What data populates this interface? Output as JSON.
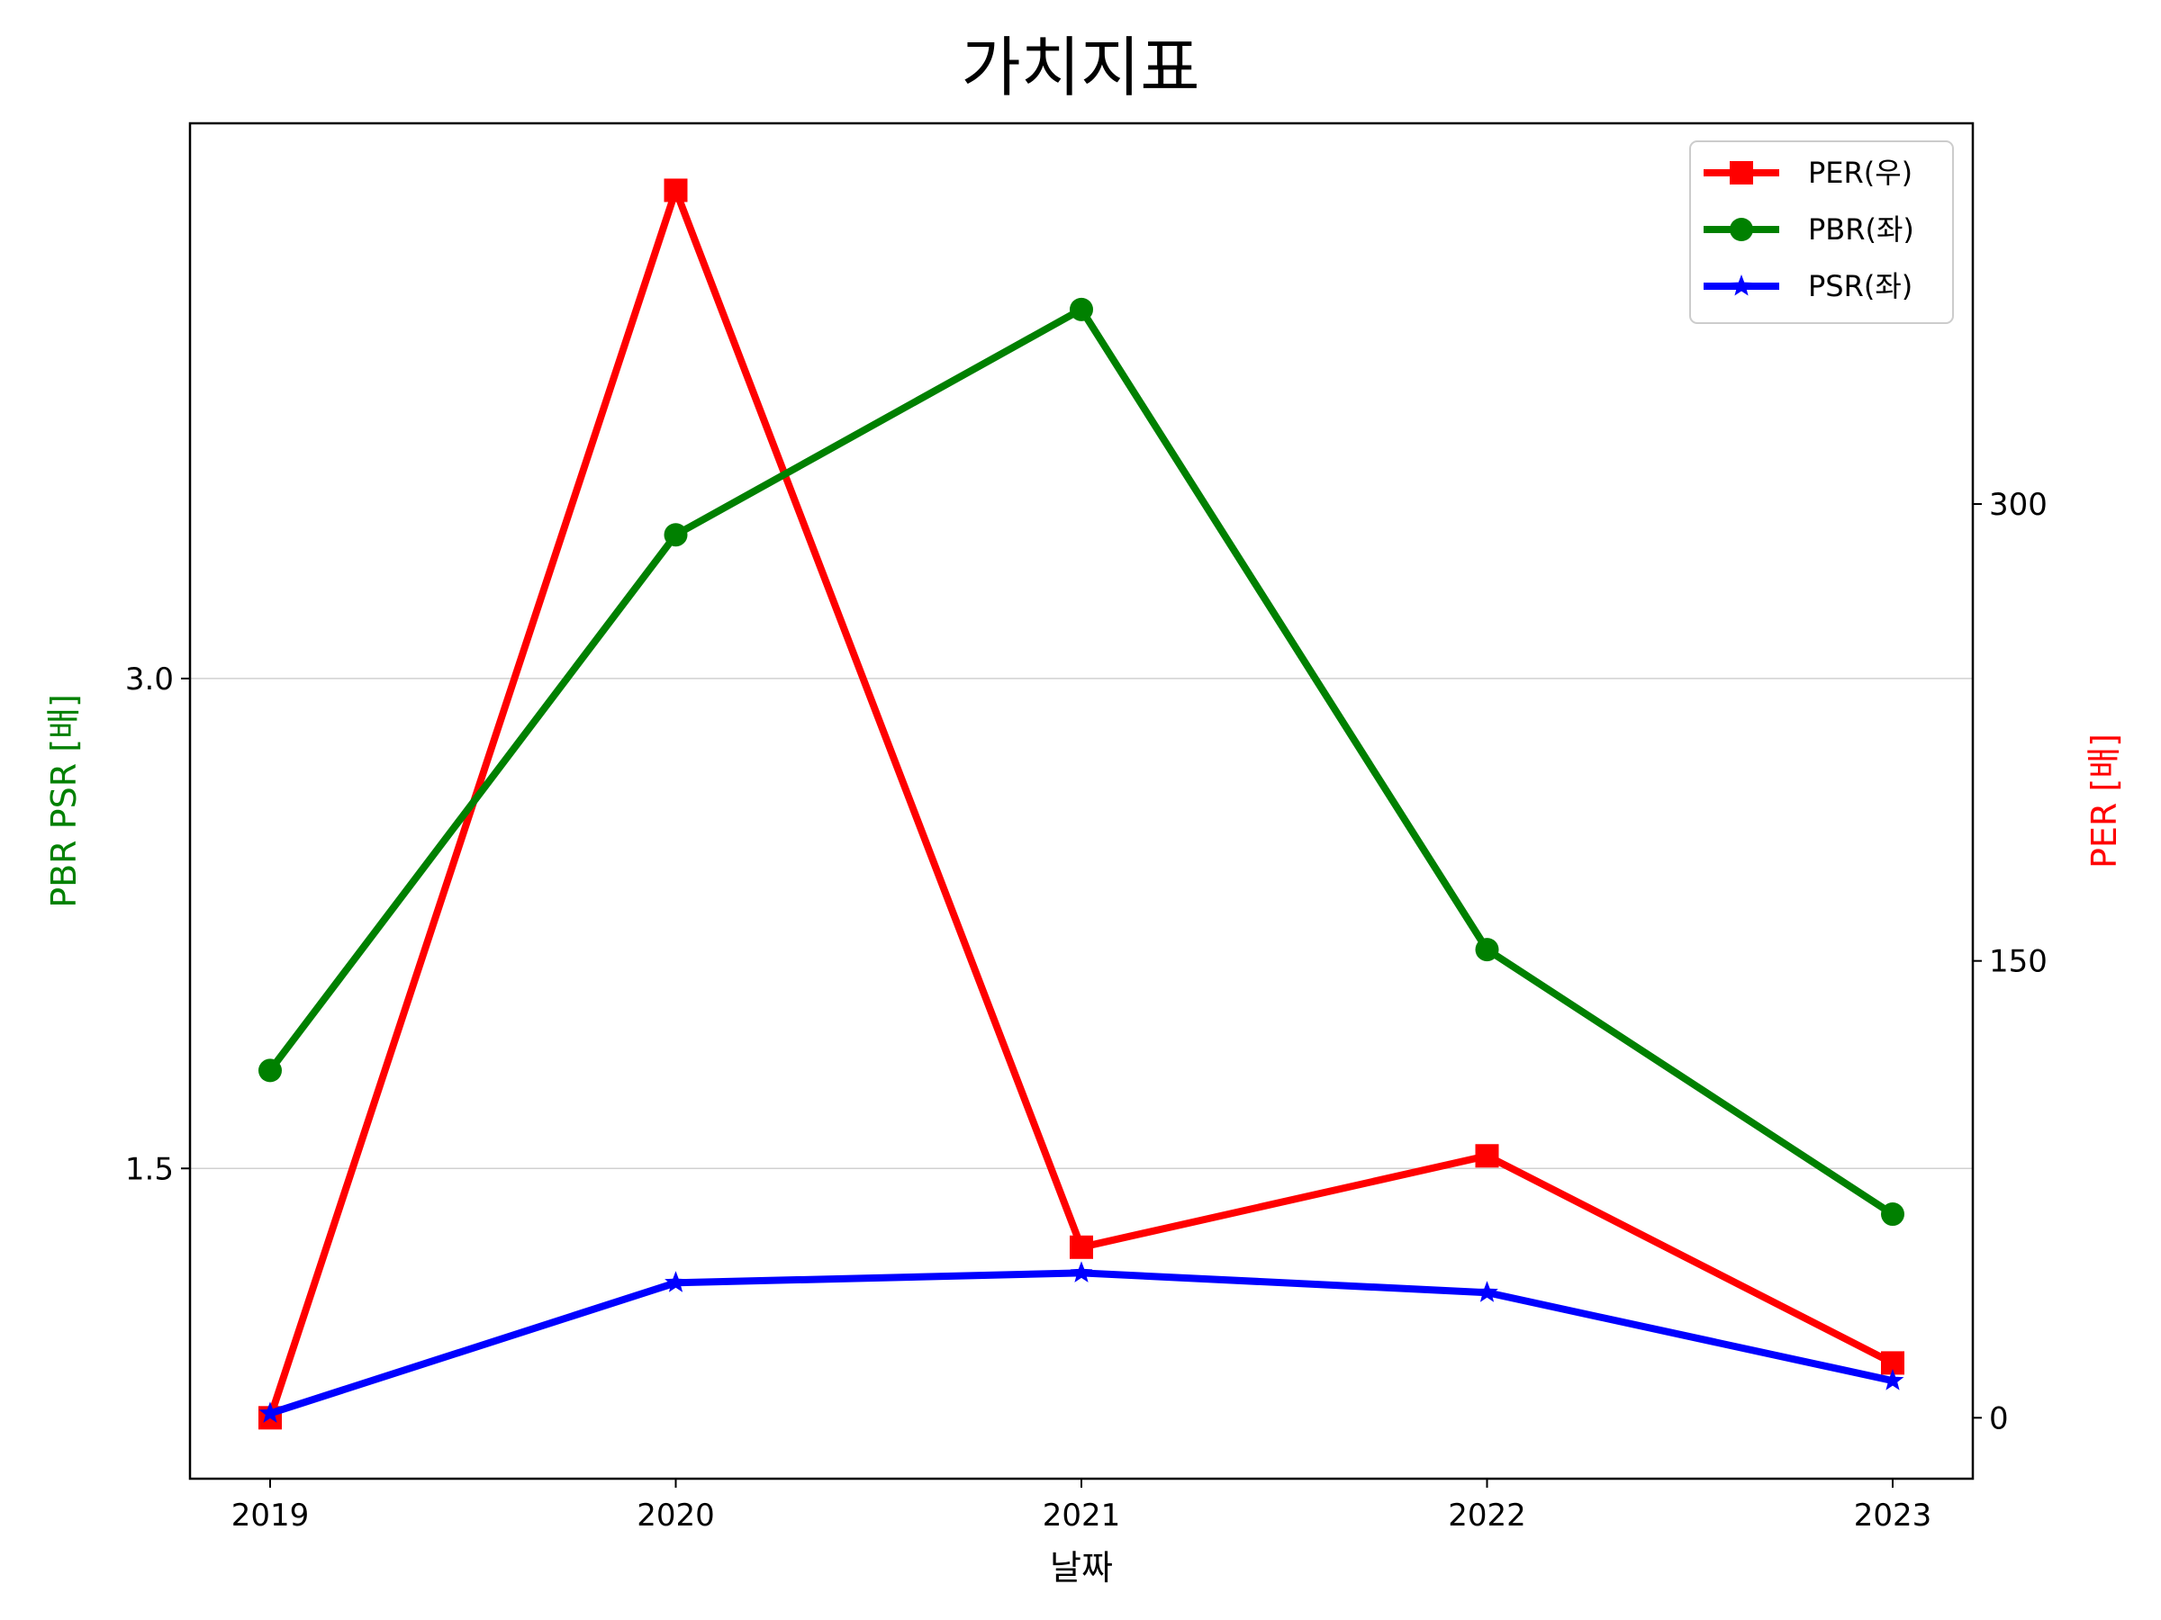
{
  "chart_data": {
    "type": "line",
    "title": "가치지표",
    "xlabel": "날짜",
    "ylabel_left": "PBR PSR [배]",
    "ylabel_right": "PER [배]",
    "categories": [
      "2019",
      "2020",
      "2021",
      "2022",
      "2023"
    ],
    "left_axis": {
      "ylim": [
        0.55,
        4.7
      ],
      "ticks": [
        1.5,
        3.0
      ],
      "tick_labels": [
        "1.5",
        "3.0"
      ],
      "grid": true
    },
    "right_axis": {
      "ylim": [
        -20,
        425
      ],
      "ticks": [
        0,
        150,
        300
      ],
      "tick_labels": [
        "0",
        "150",
        "300"
      ]
    },
    "series": [
      {
        "name": "PER(우)",
        "axis": "right",
        "color": "#ff0000",
        "marker": "square",
        "values": [
          0,
          403,
          56,
          86,
          18
        ]
      },
      {
        "name": "PBR(좌)",
        "axis": "left",
        "color": "#008000",
        "marker": "circle",
        "values": [
          1.8,
          3.44,
          4.13,
          2.17,
          1.36
        ]
      },
      {
        "name": "PSR(좌)",
        "axis": "left",
        "color": "#0000ff",
        "marker": "star",
        "values": [
          0.75,
          1.15,
          1.18,
          1.12,
          0.85
        ]
      }
    ],
    "legend_position": "top-right"
  }
}
